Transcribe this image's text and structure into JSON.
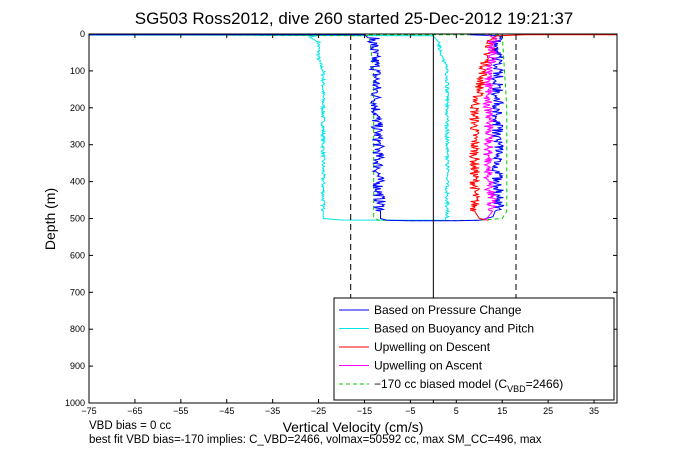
{
  "chart_data": {
    "type": "line",
    "title": "SG503 Ross2012, dive 260 started 25-Dec-2012 19:21:37",
    "xlabel": "Vertical Velocity (cm/s)",
    "ylabel": "Depth (m)",
    "xlim": [
      -75,
      40
    ],
    "ylim": [
      1000,
      0
    ],
    "y_reversed": true,
    "grid": false,
    "xticks": [
      -75,
      -65,
      -55,
      -45,
      -35,
      -25,
      -15,
      -5,
      5,
      15,
      25,
      35
    ],
    "yticks": [
      0,
      100,
      200,
      300,
      400,
      500,
      600,
      700,
      800,
      900,
      1000
    ],
    "legend_position": "bottom-right",
    "series": [
      {
        "name": "Based on Pressure Change",
        "color": "#0000ff",
        "style": "solid",
        "noise": 1.3,
        "points": [
          [
            -75,
            2
          ],
          [
            -15,
            2
          ],
          [
            -13,
            10
          ],
          [
            -13,
            50
          ],
          [
            -12.5,
            100
          ],
          [
            -12.5,
            200
          ],
          [
            -12,
            300
          ],
          [
            -12,
            400
          ],
          [
            -11.5,
            480
          ],
          [
            -11.5,
            500
          ],
          [
            -10,
            505
          ],
          [
            -5,
            506
          ],
          [
            5,
            506
          ],
          [
            10,
            505
          ],
          [
            13,
            495
          ],
          [
            14,
            480
          ],
          [
            14,
            400
          ],
          [
            14,
            300
          ],
          [
            14,
            200
          ],
          [
            14,
            100
          ],
          [
            14,
            30
          ],
          [
            14,
            5
          ],
          [
            8,
            2
          ]
        ]
      },
      {
        "name": "Based on Buoyancy and Pitch",
        "color": "#00e5e5",
        "style": "solid",
        "noise": 0.4,
        "points": [
          [
            -75,
            3
          ],
          [
            -50,
            3
          ],
          [
            -25,
            4
          ],
          [
            -27,
            8
          ],
          [
            -26,
            15
          ],
          [
            -25,
            20
          ],
          [
            -25,
            70
          ],
          [
            -24,
            100
          ],
          [
            -24,
            200
          ],
          [
            -24,
            300
          ],
          [
            -24,
            400
          ],
          [
            -24,
            480
          ],
          [
            -24,
            500
          ],
          [
            -20,
            504
          ],
          [
            -5,
            505
          ],
          [
            3,
            505
          ],
          [
            3,
            480
          ],
          [
            3,
            300
          ],
          [
            3,
            100
          ],
          [
            2,
            60
          ],
          [
            1,
            20
          ],
          [
            0,
            5
          ],
          [
            -60,
            2
          ]
        ]
      },
      {
        "name": "Upwelling on Descent",
        "color": "#ff0000",
        "style": "solid",
        "noise": 1.1,
        "points": [
          [
            40,
            2
          ],
          [
            20,
            2
          ],
          [
            14,
            5
          ],
          [
            13,
            10
          ],
          [
            12,
            50
          ],
          [
            11,
            100
          ],
          [
            10,
            150
          ],
          [
            9,
            200
          ],
          [
            9,
            300
          ],
          [
            9,
            400
          ],
          [
            9,
            480
          ],
          [
            10,
            500
          ],
          [
            12,
            505
          ]
        ]
      },
      {
        "name": "Upwelling on Ascent",
        "color": "#ff00ff",
        "style": "solid",
        "noise": 1.1,
        "points": [
          [
            11,
            505
          ],
          [
            12,
            495
          ],
          [
            13,
            480
          ],
          [
            12,
            400
          ],
          [
            12,
            300
          ],
          [
            12,
            200
          ],
          [
            12,
            100
          ],
          [
            13,
            50
          ],
          [
            13,
            10
          ],
          [
            12,
            2
          ]
        ]
      },
      {
        "name": "−170 cc biased model (C",
        "name_sub": "VBD",
        "name_tail": "=2466)",
        "color": "#00cc00",
        "style": "dashed",
        "noise": 0,
        "points": [
          [
            -75,
            2
          ],
          [
            15,
            2
          ],
          [
            15.5,
            100
          ],
          [
            16,
            200
          ],
          [
            16,
            300
          ],
          [
            16,
            400
          ],
          [
            16,
            480
          ],
          [
            15,
            500
          ],
          [
            10,
            505
          ],
          [
            -5,
            506
          ],
          [
            -12,
            505
          ],
          [
            -13,
            495
          ],
          [
            -13,
            400
          ],
          [
            -13,
            300
          ],
          [
            -13,
            200
          ],
          [
            -13,
            100
          ],
          [
            -14,
            5
          ],
          [
            -70,
            1
          ]
        ]
      }
    ],
    "reference_lines": [
      {
        "x": -18,
        "style": "dashed",
        "color": "#000000"
      },
      {
        "x": 0,
        "style": "solid",
        "color": "#000000"
      },
      {
        "x": 18,
        "style": "dashed",
        "color": "#000000"
      }
    ]
  },
  "footer": {
    "line1": "VBD bias = 0 cc",
    "line2": "best fit VBD bias=-170 implies: C_VBD=2466, volmax=50592 cc, max SM_CC=496, max"
  }
}
